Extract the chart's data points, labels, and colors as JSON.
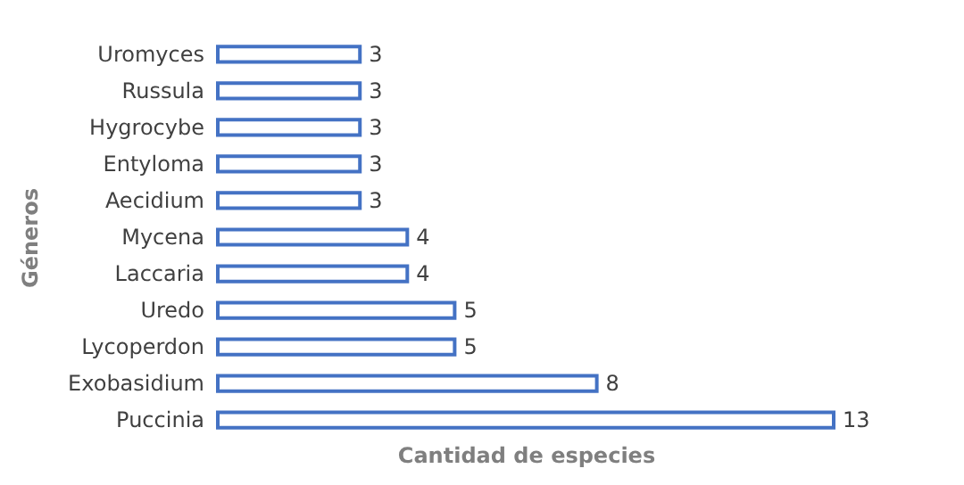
{
  "chart_data": {
    "type": "bar",
    "orientation": "horizontal",
    "xlabel": "Cantidad de especies",
    "ylabel": "Géneros",
    "categories": [
      "Uromyces",
      "Russula",
      "Hygrocybe",
      "Entyloma",
      "Aecidium",
      "Mycena",
      "Laccaria",
      "Uredo",
      "Lycoperdon",
      "Exobasidium",
      "Puccinia"
    ],
    "values": [
      3,
      3,
      3,
      3,
      3,
      4,
      4,
      5,
      5,
      8,
      13
    ],
    "color": "#4472c4",
    "data_labels": true
  }
}
